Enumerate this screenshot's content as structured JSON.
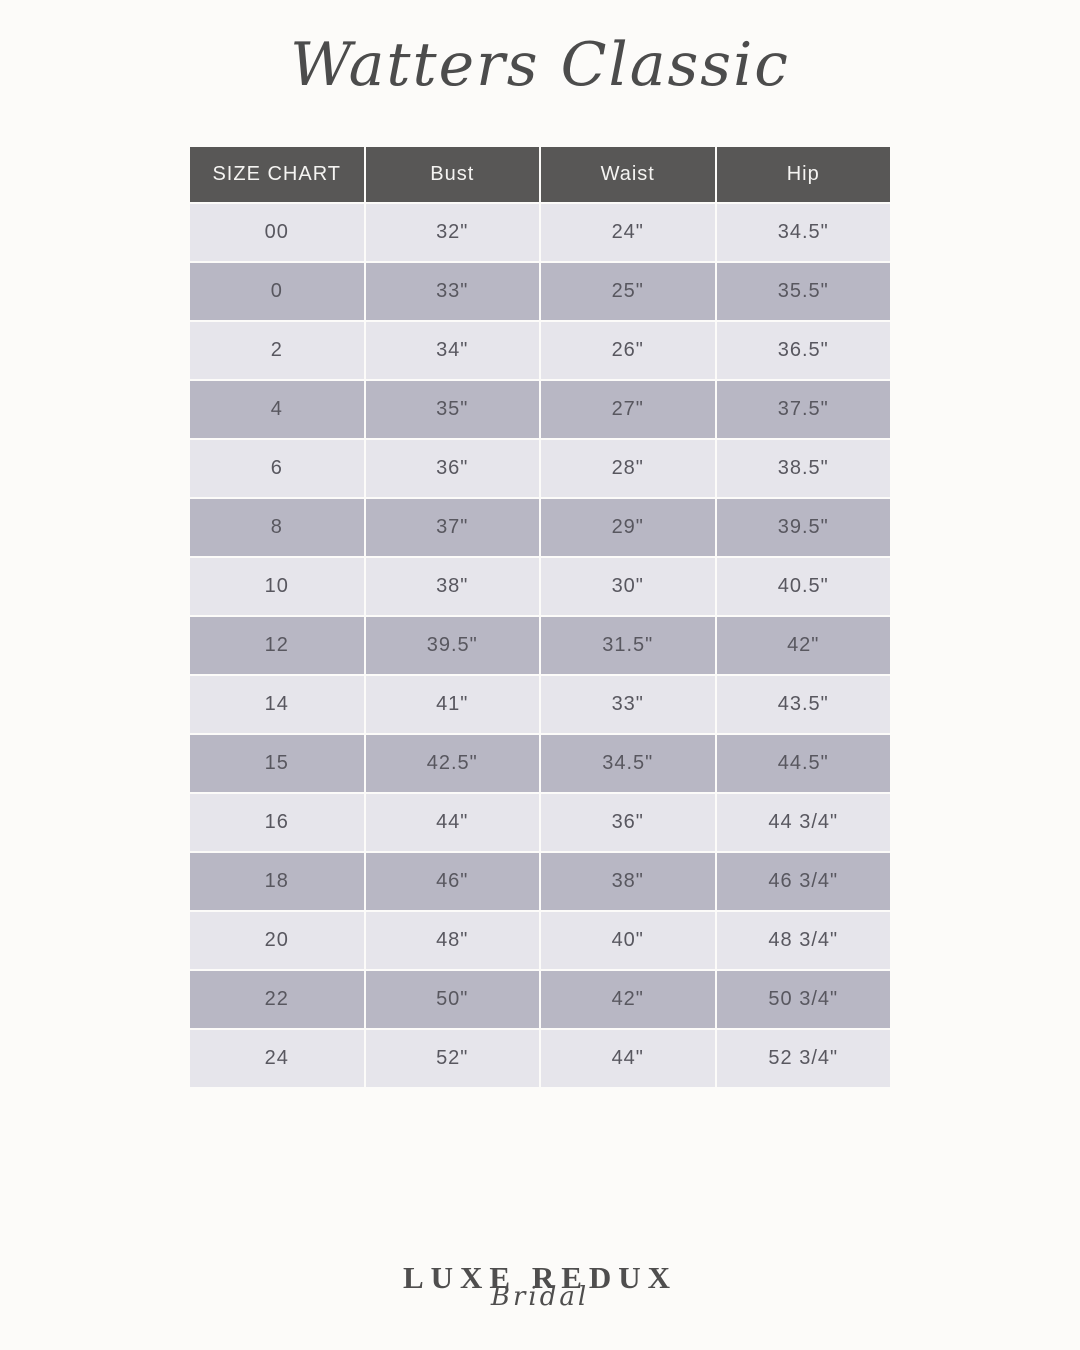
{
  "page": {
    "title": "Watters Classic",
    "background_color": "#fcfbf9"
  },
  "chart_data": {
    "type": "table",
    "title": "Watters Classic",
    "columns": [
      "SIZE CHART",
      "Bust",
      "Waist",
      "Hip"
    ],
    "rows": [
      [
        "00",
        "32\"",
        "24\"",
        "34.5\""
      ],
      [
        "0",
        "33\"",
        "25\"",
        "35.5\""
      ],
      [
        "2",
        "34\"",
        "26\"",
        "36.5\""
      ],
      [
        "4",
        "35\"",
        "27\"",
        "37.5\""
      ],
      [
        "6",
        "36\"",
        "28\"",
        "38.5\""
      ],
      [
        "8",
        "37\"",
        "29\"",
        "39.5\""
      ],
      [
        "10",
        "38\"",
        "30\"",
        "40.5\""
      ],
      [
        "12",
        "39.5\"",
        "31.5\"",
        "42\""
      ],
      [
        "14",
        "41\"",
        "33\"",
        "43.5\""
      ],
      [
        "15",
        "42.5\"",
        "34.5\"",
        "44.5\""
      ],
      [
        "16",
        "44\"",
        "36\"",
        "44 3/4\""
      ],
      [
        "18",
        "46\"",
        "38\"",
        "46 3/4\""
      ],
      [
        "20",
        "48\"",
        "40\"",
        "48 3/4\""
      ],
      [
        "22",
        "50\"",
        "42\"",
        "50 3/4\""
      ],
      [
        "24",
        "52\"",
        "44\"",
        "52 3/4\""
      ]
    ],
    "layout": {
      "row_striping": "alternating light/dark starting light",
      "header_background": "#585756",
      "header_text_color": "#f5f4f2",
      "row_light_color": "#e6e5eb",
      "row_dark_color": "#b8b7c4",
      "cell_text_color": "#58575f"
    }
  },
  "footer": {
    "brand": "LUXE REDUX",
    "brand_sub": "Bridal"
  }
}
